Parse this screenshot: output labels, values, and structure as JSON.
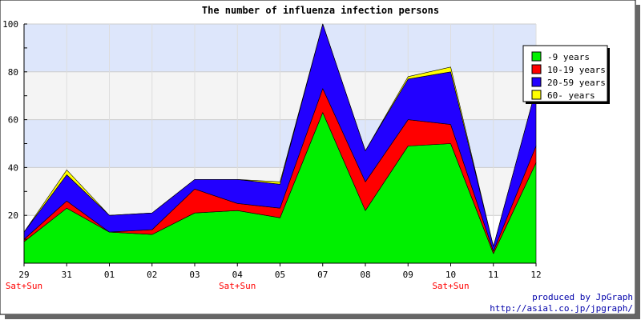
{
  "chart_data": {
    "type": "area",
    "stacked": true,
    "title": "The number of influenza infection persons",
    "categories": [
      "29",
      "31",
      "01",
      "02",
      "03",
      "04",
      "05",
      "07",
      "08",
      "09",
      "10",
      "11",
      "12"
    ],
    "weekend_markers": [
      {
        "category": "29",
        "label": "Sat+Sun"
      },
      {
        "category": "04",
        "label": "Sat+Sun"
      },
      {
        "category": "10",
        "label": "Sat+Sun"
      }
    ],
    "ylim": [
      0,
      100
    ],
    "yticks": [
      20,
      40,
      60,
      80,
      100
    ],
    "grid": true,
    "background_bands": [
      "#f4f4f4",
      "#dde6fb"
    ],
    "legend_position": "right",
    "series": [
      {
        "name": "-9 years",
        "color": "#00f000",
        "values": [
          9,
          23,
          13,
          12,
          21,
          22,
          19,
          63,
          22,
          49,
          50,
          4,
          42
        ]
      },
      {
        "name": "10-19 years",
        "color": "#ff0000",
        "values": [
          1,
          3,
          0,
          2,
          10,
          3,
          4,
          10,
          12,
          11,
          8,
          1,
          7
        ]
      },
      {
        "name": "20-59 years",
        "color": "#2200ff",
        "values": [
          3,
          11,
          7,
          7,
          4,
          10,
          10,
          27,
          13,
          17,
          22,
          2,
          24
        ]
      },
      {
        "name": "60- years",
        "color": "#ffff00",
        "values": [
          0,
          2,
          0,
          0,
          0,
          0,
          1,
          0,
          0,
          1,
          2,
          0,
          0
        ]
      }
    ]
  },
  "footer": {
    "line1": "produced by JpGraph",
    "line2": "http://asial.co.jp/jpgraph/"
  }
}
